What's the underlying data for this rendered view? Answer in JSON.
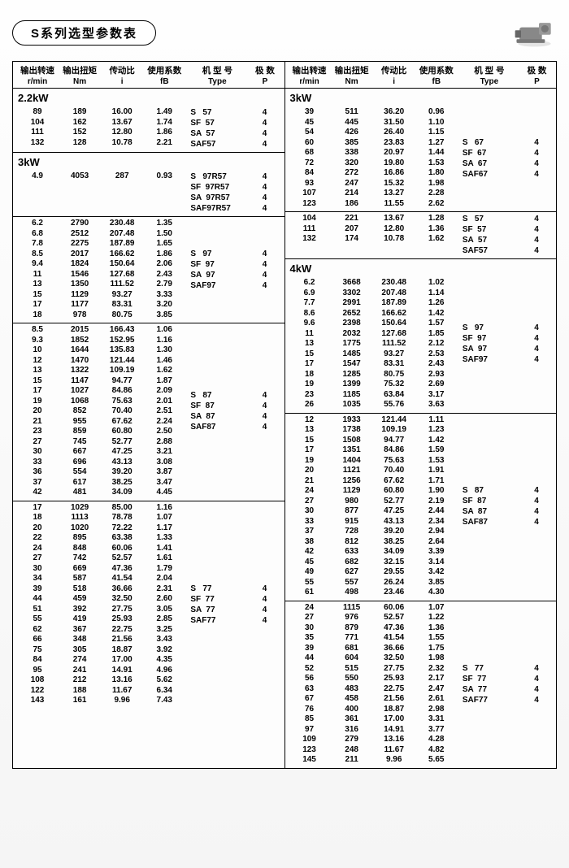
{
  "title": "S系列选型参数表",
  "headers": {
    "row1": [
      "输出转速",
      "输出扭矩",
      "传动比",
      "使用系数",
      "机 型 号",
      "极 数"
    ],
    "row2": [
      "r/min",
      "Nm",
      "i",
      "fB",
      "Type",
      "P"
    ]
  },
  "left": [
    {
      "title": "2.2kW",
      "groups": [
        {
          "rows": [
            [
              "89",
              "189",
              "16.00",
              "1.49"
            ],
            [
              "104",
              "162",
              "13.67",
              "1.74"
            ],
            [
              "111",
              "152",
              "12.80",
              "1.86"
            ],
            [
              "132",
              "128",
              "10.78",
              "2.21"
            ]
          ],
          "types": [
            [
              "S   57",
              "4"
            ],
            [
              "SF  57",
              "4"
            ],
            [
              "SA  57",
              "4"
            ],
            [
              "SAF57",
              "4"
            ]
          ]
        }
      ]
    },
    {
      "title": "3kW",
      "groups": [
        {
          "rows": [
            [
              "4.9",
              "4053",
              "287",
              "0.93"
            ]
          ],
          "types": [
            [
              "S   97R57",
              "4"
            ],
            [
              "SF  97R57",
              "4"
            ],
            [
              "SA  97R57",
              "4"
            ],
            [
              "SAF97R57",
              "4"
            ]
          ]
        },
        {
          "rows": [
            [
              "6.2",
              "2790",
              "230.48",
              "1.35"
            ],
            [
              "6.8",
              "2512",
              "207.48",
              "1.50"
            ],
            [
              "7.8",
              "2275",
              "187.89",
              "1.65"
            ],
            [
              "8.5",
              "2017",
              "166.62",
              "1.86"
            ],
            [
              "9.4",
              "1824",
              "150.64",
              "2.06"
            ],
            [
              "11",
              "1546",
              "127.68",
              "2.43"
            ],
            [
              "13",
              "1350",
              "111.52",
              "2.79"
            ],
            [
              "15",
              "1129",
              "93.27",
              "3.33"
            ],
            [
              "17",
              "1177",
              "83.31",
              "3.20"
            ],
            [
              "18",
              "978",
              "80.75",
              "3.85"
            ]
          ],
          "types": [
            [
              "S   97",
              "4"
            ],
            [
              "SF  97",
              "4"
            ],
            [
              "SA  97",
              "4"
            ],
            [
              "SAF97",
              "4"
            ]
          ]
        },
        {
          "rows": [
            [
              "8.5",
              "2015",
              "166.43",
              "1.06"
            ],
            [
              "9.3",
              "1852",
              "152.95",
              "1.16"
            ],
            [
              "10",
              "1644",
              "135.83",
              "1.30"
            ],
            [
              "12",
              "1470",
              "121.44",
              "1.46"
            ],
            [
              "13",
              "1322",
              "109.19",
              "1.62"
            ],
            [
              "15",
              "1147",
              "94.77",
              "1.87"
            ],
            [
              "17",
              "1027",
              "84.86",
              "2.09"
            ],
            [
              "19",
              "1068",
              "75.63",
              "2.01"
            ],
            [
              "20",
              "852",
              "70.40",
              "2.51"
            ],
            [
              "21",
              "955",
              "67.62",
              "2.24"
            ],
            [
              "23",
              "859",
              "60.80",
              "2.50"
            ],
            [
              "27",
              "745",
              "52.77",
              "2.88"
            ],
            [
              "30",
              "667",
              "47.25",
              "3.21"
            ],
            [
              "33",
              "696",
              "43.13",
              "3.08"
            ],
            [
              "36",
              "554",
              "39.20",
              "3.87"
            ],
            [
              "37",
              "617",
              "38.25",
              "3.47"
            ],
            [
              "42",
              "481",
              "34.09",
              "4.45"
            ]
          ],
          "types": [
            [
              "S   87",
              "4"
            ],
            [
              "SF  87",
              "4"
            ],
            [
              "SA  87",
              "4"
            ],
            [
              "SAF87",
              "4"
            ]
          ]
        },
        {
          "rows": [
            [
              "17",
              "1029",
              "85.00",
              "1.16"
            ],
            [
              "18",
              "1113",
              "78.78",
              "1.07"
            ],
            [
              "20",
              "1020",
              "72.22",
              "1.17"
            ],
            [
              "22",
              "895",
              "63.38",
              "1.33"
            ],
            [
              "24",
              "848",
              "60.06",
              "1.41"
            ],
            [
              "27",
              "742",
              "52.57",
              "1.61"
            ],
            [
              "30",
              "669",
              "47.36",
              "1.79"
            ],
            [
              "34",
              "587",
              "41.54",
              "2.04"
            ],
            [
              "39",
              "518",
              "36.66",
              "2.31"
            ],
            [
              "44",
              "459",
              "32.50",
              "2.60"
            ],
            [
              "51",
              "392",
              "27.75",
              "3.05"
            ],
            [
              "55",
              "419",
              "25.93",
              "2.85"
            ],
            [
              "62",
              "367",
              "22.75",
              "3.25"
            ],
            [
              "66",
              "348",
              "21.56",
              "3.43"
            ],
            [
              "75",
              "305",
              "18.87",
              "3.92"
            ],
            [
              "84",
              "274",
              "17.00",
              "4.35"
            ],
            [
              "95",
              "241",
              "14.91",
              "4.96"
            ],
            [
              "108",
              "212",
              "13.16",
              "5.62"
            ],
            [
              "122",
              "188",
              "11.67",
              "6.34"
            ],
            [
              "143",
              "161",
              "9.96",
              "7.43"
            ]
          ],
          "types": [
            [
              "S   77",
              "4"
            ],
            [
              "SF  77",
              "4"
            ],
            [
              "SA  77",
              "4"
            ],
            [
              "SAF77",
              "4"
            ]
          ]
        }
      ]
    }
  ],
  "right": [
    {
      "title": "3kW",
      "groups": [
        {
          "rows": [
            [
              "39",
              "511",
              "36.20",
              "0.96"
            ],
            [
              "45",
              "445",
              "31.50",
              "1.10"
            ],
            [
              "54",
              "426",
              "26.40",
              "1.15"
            ],
            [
              "60",
              "385",
              "23.83",
              "1.27"
            ],
            [
              "68",
              "338",
              "20.97",
              "1.44"
            ],
            [
              "72",
              "320",
              "19.80",
              "1.53"
            ],
            [
              "84",
              "272",
              "16.86",
              "1.80"
            ],
            [
              "93",
              "247",
              "15.32",
              "1.98"
            ],
            [
              "107",
              "214",
              "13.27",
              "2.28"
            ],
            [
              "123",
              "186",
              "11.55",
              "2.62"
            ]
          ],
          "types": [
            [
              "S   67",
              "4"
            ],
            [
              "SF  67",
              "4"
            ],
            [
              "SA  67",
              "4"
            ],
            [
              "SAF67",
              "4"
            ]
          ]
        },
        {
          "rows": [
            [
              "104",
              "221",
              "13.67",
              "1.28"
            ],
            [
              "111",
              "207",
              "12.80",
              "1.36"
            ],
            [
              "132",
              "174",
              "10.78",
              "1.62"
            ]
          ],
          "types": [
            [
              "S   57",
              "4"
            ],
            [
              "SF  57",
              "4"
            ],
            [
              "SA  57",
              "4"
            ],
            [
              "SAF57",
              "4"
            ]
          ]
        }
      ]
    },
    {
      "title": "4kW",
      "groups": [
        {
          "rows": [
            [
              "6.2",
              "3668",
              "230.48",
              "1.02"
            ],
            [
              "6.9",
              "3302",
              "207.48",
              "1.14"
            ],
            [
              "7.7",
              "2991",
              "187.89",
              "1.26"
            ],
            [
              "8.6",
              "2652",
              "166.62",
              "1.42"
            ],
            [
              "9.6",
              "2398",
              "150.64",
              "1.57"
            ],
            [
              "11",
              "2032",
              "127.68",
              "1.85"
            ],
            [
              "13",
              "1775",
              "111.52",
              "2.12"
            ],
            [
              "15",
              "1485",
              "93.27",
              "2.53"
            ],
            [
              "17",
              "1547",
              "83.31",
              "2.43"
            ],
            [
              "18",
              "1285",
              "80.75",
              "2.93"
            ],
            [
              "19",
              "1399",
              "75.32",
              "2.69"
            ],
            [
              "23",
              "1185",
              "63.84",
              "3.17"
            ],
            [
              "26",
              "1035",
              "55.76",
              "3.63"
            ]
          ],
          "types": [
            [
              "S   97",
              "4"
            ],
            [
              "SF  97",
              "4"
            ],
            [
              "SA  97",
              "4"
            ],
            [
              "SAF97",
              "4"
            ]
          ]
        },
        {
          "rows": [
            [
              "12",
              "1933",
              "121.44",
              "1.11"
            ],
            [
              "13",
              "1738",
              "109.19",
              "1.23"
            ],
            [
              "15",
              "1508",
              "94.77",
              "1.42"
            ],
            [
              "17",
              "1351",
              "84.86",
              "1.59"
            ],
            [
              "19",
              "1404",
              "75.63",
              "1.53"
            ],
            [
              "20",
              "1121",
              "70.40",
              "1.91"
            ],
            [
              "21",
              "1256",
              "67.62",
              "1.71"
            ],
            [
              "24",
              "1129",
              "60.80",
              "1.90"
            ],
            [
              "27",
              "980",
              "52.77",
              "2.19"
            ],
            [
              "30",
              "877",
              "47.25",
              "2.44"
            ],
            [
              "33",
              "915",
              "43.13",
              "2.34"
            ],
            [
              "37",
              "728",
              "39.20",
              "2.94"
            ],
            [
              "38",
              "812",
              "38.25",
              "2.64"
            ],
            [
              "42",
              "633",
              "34.09",
              "3.39"
            ],
            [
              "45",
              "682",
              "32.15",
              "3.14"
            ],
            [
              "49",
              "627",
              "29.55",
              "3.42"
            ],
            [
              "55",
              "557",
              "26.24",
              "3.85"
            ],
            [
              "61",
              "498",
              "23.46",
              "4.30"
            ]
          ],
          "types": [
            [
              "S   87",
              "4"
            ],
            [
              "SF  87",
              "4"
            ],
            [
              "SA  87",
              "4"
            ],
            [
              "SAF87",
              "4"
            ]
          ]
        },
        {
          "rows": [
            [
              "24",
              "1115",
              "60.06",
              "1.07"
            ],
            [
              "27",
              "976",
              "52.57",
              "1.22"
            ],
            [
              "30",
              "879",
              "47.36",
              "1.36"
            ],
            [
              "35",
              "771",
              "41.54",
              "1.55"
            ],
            [
              "39",
              "681",
              "36.66",
              "1.75"
            ],
            [
              "44",
              "604",
              "32.50",
              "1.98"
            ],
            [
              "52",
              "515",
              "27.75",
              "2.32"
            ],
            [
              "56",
              "550",
              "25.93",
              "2.17"
            ],
            [
              "63",
              "483",
              "22.75",
              "2.47"
            ],
            [
              "67",
              "458",
              "21.56",
              "2.61"
            ],
            [
              "76",
              "400",
              "18.87",
              "2.98"
            ],
            [
              "85",
              "361",
              "17.00",
              "3.31"
            ],
            [
              "97",
              "316",
              "14.91",
              "3.77"
            ],
            [
              "109",
              "279",
              "13.16",
              "4.28"
            ],
            [
              "123",
              "248",
              "11.67",
              "4.82"
            ],
            [
              "145",
              "211",
              "9.96",
              "5.65"
            ]
          ],
          "types": [
            [
              "S   77",
              "4"
            ],
            [
              "SF  77",
              "4"
            ],
            [
              "SA  77",
              "4"
            ],
            [
              "SAF77",
              "4"
            ]
          ]
        }
      ]
    }
  ]
}
